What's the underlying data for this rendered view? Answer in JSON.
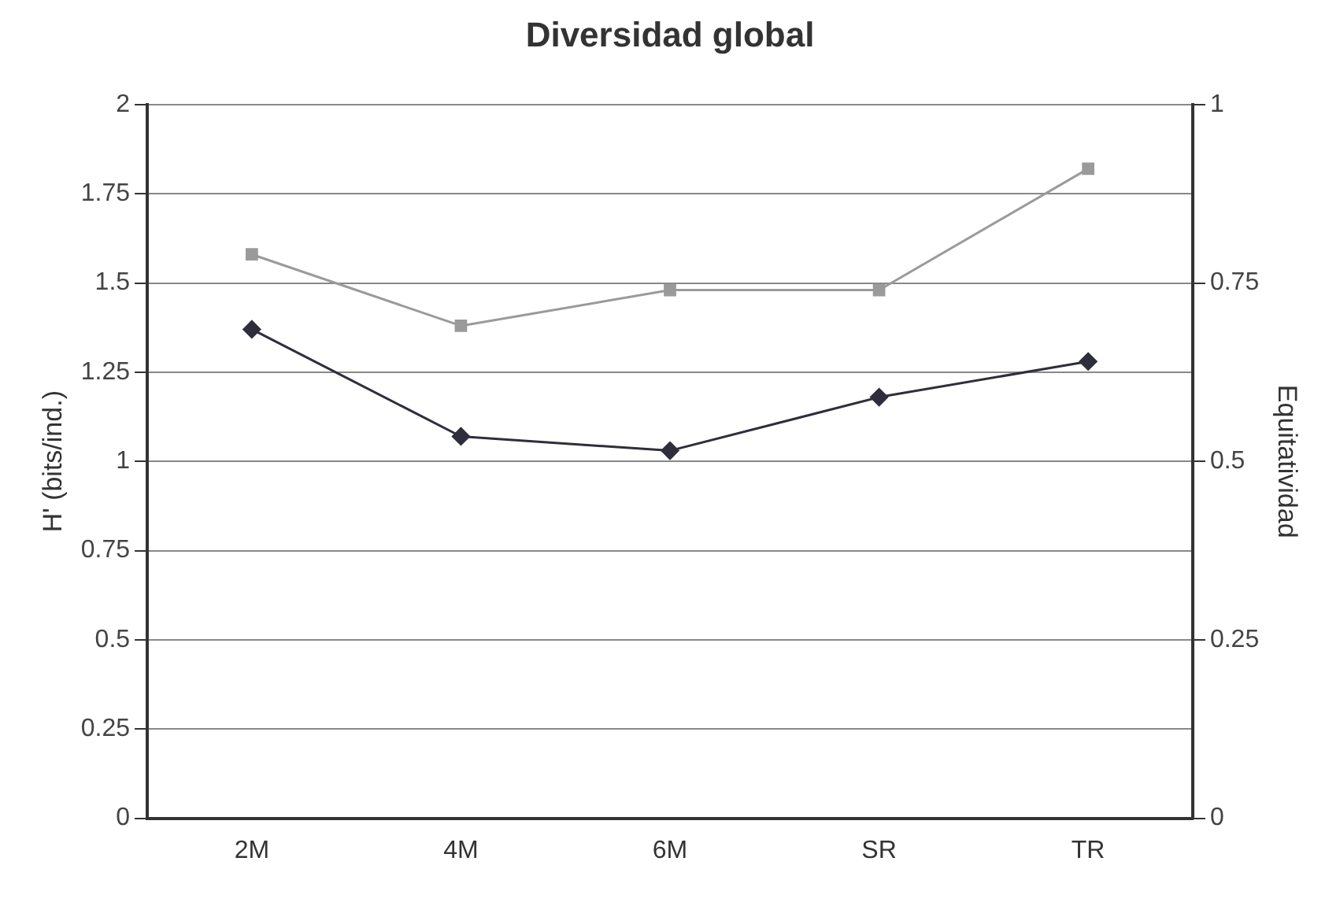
{
  "chart_data": {
    "type": "line",
    "title": "Diversidad global",
    "ylabel": "H' (bits/ind.)",
    "y2label": "Equitatividad",
    "categories": [
      "2M",
      "4M",
      "6M",
      "SR",
      "TR"
    ],
    "series": [
      {
        "color": "#2e2e3c",
        "marker": "diamond",
        "values": [
          1.37,
          1.07,
          1.03,
          1.18,
          1.28
        ]
      },
      {
        "color": "#9a9a9a",
        "marker": "square",
        "axis": "y2",
        "values": [
          0.79,
          0.69,
          0.74,
          0.74,
          0.91
        ]
      }
    ],
    "ylim": [
      0,
      2
    ],
    "yticks": [
      0,
      0.25,
      0.5,
      0.75,
      1,
      1.25,
      1.5,
      1.75,
      2
    ],
    "y2lim": [
      0,
      1
    ],
    "y2ticks": [
      0,
      0.25,
      0.5,
      0.75,
      1
    ],
    "grid": "y",
    "legend": false
  }
}
